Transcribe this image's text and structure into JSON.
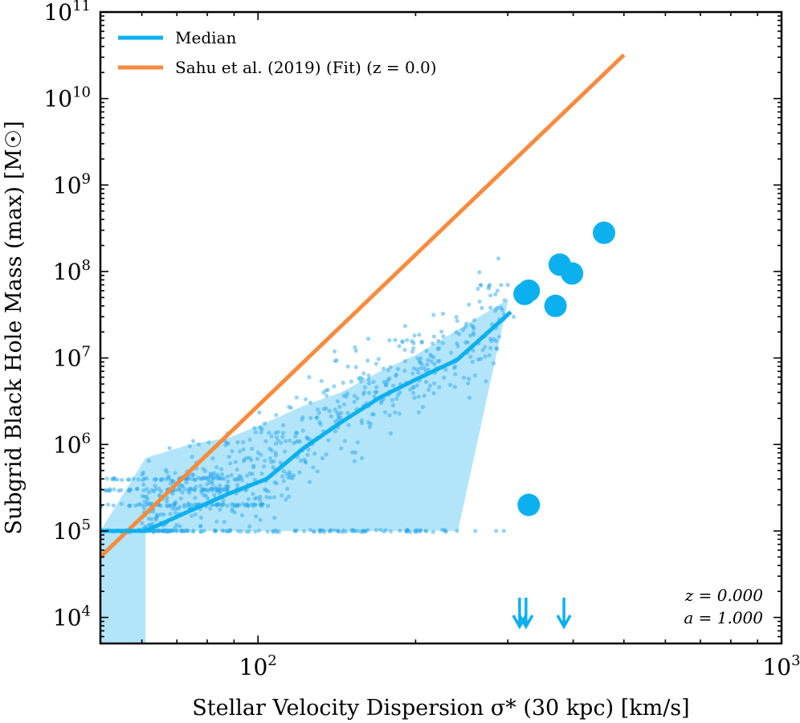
{
  "chart_data": {
    "type": "scatter",
    "xlabel": "Stellar Velocity Dispersion σ* (30 kpc) [km/s]",
    "ylabel": "Subgrid Black Hole Mass (max) [M☉]",
    "x_scale": "log",
    "y_scale": "log",
    "xlim": [
      50,
      1000
    ],
    "ylim": [
      5000,
      100000000000
    ],
    "x_ticks": [
      {
        "value": 100,
        "base": "10",
        "exp": "2"
      },
      {
        "value": 1000,
        "base": "10",
        "exp": "3"
      }
    ],
    "y_ticks": [
      {
        "value": 10000,
        "base": "10",
        "exp": "4"
      },
      {
        "value": 100000,
        "base": "10",
        "exp": "5"
      },
      {
        "value": 1000000,
        "base": "10",
        "exp": "6"
      },
      {
        "value": 10000000,
        "base": "10",
        "exp": "7"
      },
      {
        "value": 100000000,
        "base": "10",
        "exp": "8"
      },
      {
        "value": 1000000000,
        "base": "10",
        "exp": "9"
      },
      {
        "value": 10000000000,
        "base": "10",
        "exp": "10"
      },
      {
        "value": 100000000000,
        "base": "10",
        "exp": "11"
      }
    ],
    "grid": false,
    "legend_position": "top-left",
    "colors": {
      "median": "#0cb0ee",
      "shade": "#b3e5fa",
      "fit": "#f98b3e",
      "scatter": "#2ea9eb"
    },
    "legend": [
      {
        "label": "Median",
        "color": "#0cb0ee"
      },
      {
        "label": "Sahu et al. (2019) (Fit) (z = 0.0)",
        "color": "#f98b3e"
      }
    ],
    "series": [
      {
        "name": "Median",
        "type": "line",
        "x": [
          50,
          61,
          74,
          88,
          104,
          122,
          144,
          171,
          201,
          240,
          304
        ],
        "y": [
          100000,
          100000,
          170000,
          270000,
          400000,
          900000,
          1800000,
          3500000,
          5700000,
          9500000,
          34000000
        ]
      },
      {
        "name": "Sahu et al. (2019) (Fit) (z = 0.0)",
        "type": "line",
        "x": [
          50,
          500
        ],
        "y": [
          50000,
          32000000000
        ]
      }
    ],
    "band": {
      "x": [
        50,
        61,
        61,
        241,
        301,
        301,
        201,
        171,
        144,
        122,
        104,
        88,
        74,
        61,
        50
      ],
      "y_points": [
        5000,
        5000,
        100000,
        100000,
        48000000,
        48000000,
        11000000,
        7000000,
        4000000,
        2800000,
        1800000,
        1200000,
        1000000,
        700000,
        100000
      ]
    },
    "large_points": [
      {
        "x": 323,
        "y": 55000000
      },
      {
        "x": 329,
        "y": 60000000
      },
      {
        "x": 370,
        "y": 40000000
      },
      {
        "x": 377,
        "y": 120000000
      },
      {
        "x": 398,
        "y": 95000000
      },
      {
        "x": 458,
        "y": 280000000
      },
      {
        "x": 329,
        "y": 200000
      }
    ],
    "upper_limit_arrows": [
      {
        "x": 316
      },
      {
        "x": 325
      },
      {
        "x": 384
      }
    ],
    "annotation": [
      "z = 0.000",
      "a = 1.000"
    ]
  }
}
